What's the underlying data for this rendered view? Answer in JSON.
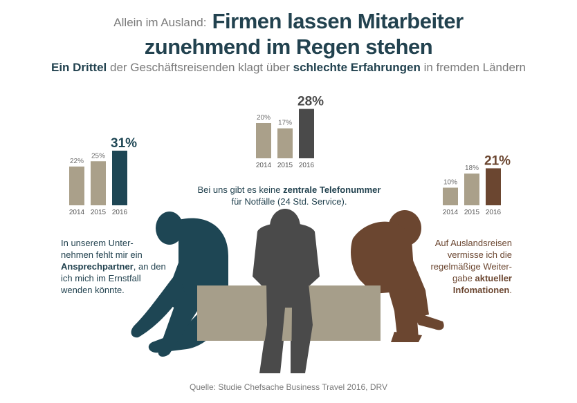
{
  "header": {
    "prefix": "Allein im Ausland:",
    "title_line1": "Firmen lassen Mitarbeiter",
    "title_line2_a": "zunehmend im",
    "title_line2_b": "Regen",
    "title_line2_c": "stehen",
    "sub_a": "Ein Drittel",
    "sub_b": "der Geschäftsreisenden klagt über",
    "sub_c": "schlechte Erfahrungen",
    "sub_d": "in fremden Ländern"
  },
  "chart_data": [
    {
      "type": "bar",
      "categories": [
        "2014",
        "2015",
        "2016"
      ],
      "values": [
        22,
        25,
        31
      ],
      "labels": [
        "22%",
        "25%",
        "31%"
      ],
      "colors": [
        "#aaa08a",
        "#aaa08a",
        "#1e4654"
      ],
      "caption_a": "In unserem Unter-",
      "caption_b": "nehmen fehlt mir ein",
      "caption_c": "Ansprechpartner",
      "caption_d": ", an den",
      "caption_e": "ich mich im Ernstfall",
      "caption_f": "wenden könnte."
    },
    {
      "type": "bar",
      "categories": [
        "2014",
        "2015",
        "2016"
      ],
      "values": [
        20,
        17,
        28
      ],
      "labels": [
        "20%",
        "17%",
        "28%"
      ],
      "colors": [
        "#aaa08a",
        "#aaa08a",
        "#4a4a4a"
      ],
      "caption_a": "Bei uns gibt es keine",
      "caption_b": "zentrale Telefonummer",
      "caption_c": "für Notfälle (24 Std. Service)."
    },
    {
      "type": "bar",
      "categories": [
        "2014",
        "2015",
        "2016"
      ],
      "values": [
        10,
        18,
        21
      ],
      "labels": [
        "10%",
        "18%",
        "21%"
      ],
      "colors": [
        "#aaa08a",
        "#aaa08a",
        "#6b4630"
      ],
      "caption_a": "Auf Auslandsreisen",
      "caption_b": "vermisse ich die",
      "caption_c": "regelmäßige Weiter-",
      "caption_d": "gabe",
      "caption_e": "aktueller",
      "caption_f": "Infomationen",
      "caption_g": "."
    }
  ],
  "footer": {
    "source": "Quelle: Studie Chefsache Business Travel 2016, DRV"
  }
}
